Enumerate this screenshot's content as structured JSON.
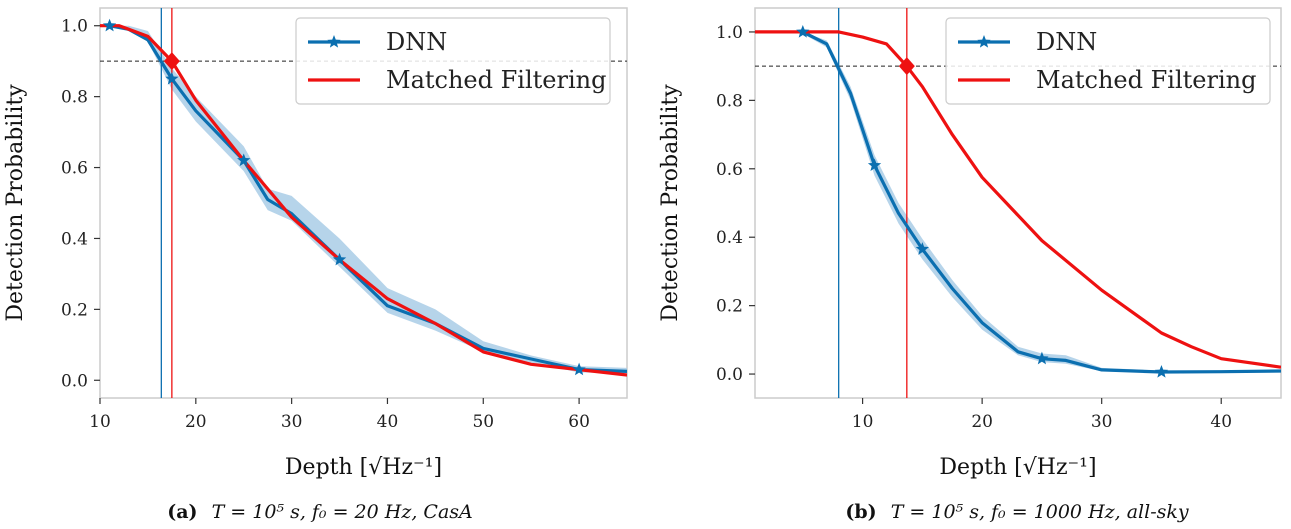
{
  "colors": {
    "dnn": "#0b6fb0",
    "dnn_band": "#a9cce6",
    "mf": "#ee1111",
    "threshold": "#222222",
    "axes_frame": "#cccccc"
  },
  "chart_data": [
    {
      "type": "line",
      "caption": {
        "label": "(a)",
        "text": "T = 10⁵ s,  f₀ = 20 Hz,  CasA"
      },
      "xlabel": "Depth [√Hz⁻¹]",
      "ylabel": "Detection Probability",
      "xlim": [
        10,
        65
      ],
      "ylim": [
        -0.05,
        1.05
      ],
      "xticks": [
        10,
        20,
        30,
        40,
        50,
        60
      ],
      "yticks": [
        0.0,
        0.2,
        0.4,
        0.6,
        0.8,
        1.0
      ],
      "threshold_y": 0.9,
      "legend_position": "top-right",
      "grid": false,
      "series": [
        {
          "name": "DNN",
          "marker": "star",
          "x": [
            11,
            13,
            15,
            17.5,
            20,
            25,
            27.5,
            30,
            35,
            40,
            45,
            50,
            55,
            60,
            65
          ],
          "y": [
            1.0,
            0.99,
            0.96,
            0.85,
            0.76,
            0.62,
            0.51,
            0.47,
            0.34,
            0.21,
            0.16,
            0.09,
            0.06,
            0.03,
            0.025
          ],
          "band_low": [
            0.995,
            0.985,
            0.955,
            0.82,
            0.73,
            0.59,
            0.48,
            0.45,
            0.32,
            0.19,
            0.14,
            0.08,
            0.05,
            0.022,
            0.02
          ],
          "band_high": [
            1.0,
            1.0,
            0.985,
            0.88,
            0.8,
            0.66,
            0.54,
            0.52,
            0.4,
            0.26,
            0.2,
            0.11,
            0.07,
            0.04,
            0.035
          ],
          "marker_x": [
            11,
            17.5,
            25,
            35,
            60
          ],
          "marker_y": [
            1.0,
            0.85,
            0.62,
            0.34,
            0.03
          ]
        },
        {
          "name": "Matched Filtering",
          "x": [
            10,
            12,
            15,
            17.5,
            20,
            25,
            30,
            35,
            40,
            45,
            50,
            55,
            60,
            65
          ],
          "y": [
            1.0,
            1.0,
            0.97,
            0.9,
            0.79,
            0.62,
            0.46,
            0.34,
            0.23,
            0.16,
            0.08,
            0.045,
            0.03,
            0.015
          ]
        }
      ],
      "crossing": {
        "dnn_x": 16.4,
        "mf_x": 17.5,
        "mf_marker_y": 0.9
      }
    },
    {
      "type": "line",
      "caption": {
        "label": "(b)",
        "text": "T = 10⁵ s,  f₀ = 1000 Hz,  all-sky"
      },
      "xlabel": "Depth [√Hz⁻¹]",
      "ylabel": "Detection Probability",
      "xlim": [
        1,
        45
      ],
      "ylim": [
        -0.07,
        1.07
      ],
      "xticks": [
        10,
        20,
        30,
        40
      ],
      "yticks": [
        0.0,
        0.2,
        0.4,
        0.6,
        0.8,
        1.0
      ],
      "threshold_y": 0.9,
      "legend_position": "top-right",
      "grid": false,
      "series": [
        {
          "name": "DNN",
          "marker": "star",
          "x": [
            5,
            7,
            9,
            11,
            13,
            15,
            17.5,
            20,
            23,
            25,
            27,
            30,
            35,
            40,
            45
          ],
          "y": [
            1.0,
            0.965,
            0.82,
            0.61,
            0.47,
            0.365,
            0.25,
            0.15,
            0.065,
            0.045,
            0.04,
            0.012,
            0.006,
            0.007,
            0.009
          ],
          "band_low": [
            0.995,
            0.955,
            0.8,
            0.58,
            0.44,
            0.335,
            0.225,
            0.13,
            0.055,
            0.035,
            0.03,
            0.008,
            0.003,
            0.004,
            0.006
          ],
          "band_high": [
            1.0,
            0.975,
            0.84,
            0.64,
            0.5,
            0.395,
            0.275,
            0.17,
            0.08,
            0.06,
            0.055,
            0.018,
            0.01,
            0.01,
            0.012
          ],
          "marker_x": [
            5,
            11,
            15,
            25,
            35
          ],
          "marker_y": [
            1.0,
            0.61,
            0.365,
            0.045,
            0.006
          ]
        },
        {
          "name": "Matched Filtering",
          "x": [
            1,
            5,
            8,
            10,
            12,
            13.7,
            15,
            17.5,
            20,
            25,
            30,
            35,
            37.5,
            40,
            45
          ],
          "y": [
            1.0,
            1.0,
            1.0,
            0.985,
            0.965,
            0.9,
            0.84,
            0.7,
            0.575,
            0.39,
            0.245,
            0.12,
            0.08,
            0.045,
            0.02
          ]
        }
      ],
      "crossing": {
        "dnn_x": 8,
        "mf_x": 13.7,
        "mf_marker_y": 0.9
      }
    }
  ]
}
